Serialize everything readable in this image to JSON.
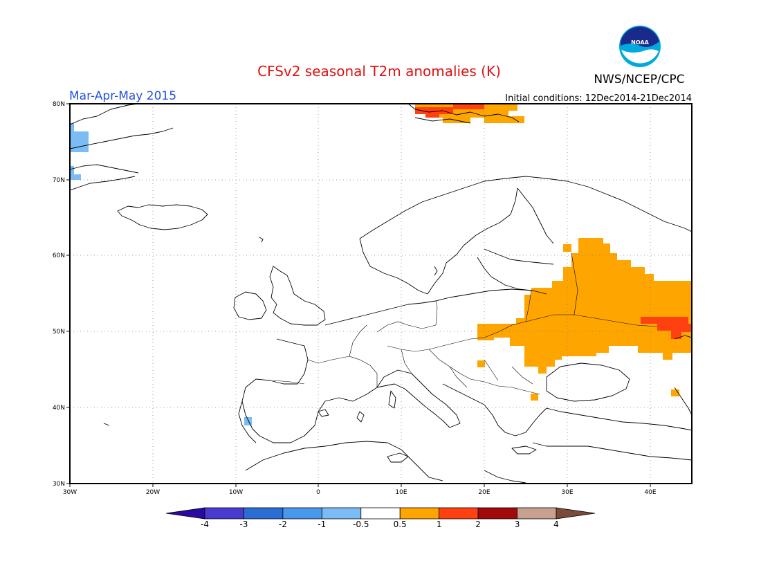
{
  "header": {
    "title": "CFSv2 seasonal T2m anomalies (K)",
    "agency": "NWS/NCEP/CPC",
    "logo_text": "NOAA",
    "period": "Mar-Apr-May 2015",
    "initial_conditions": "Initial conditions: 12Dec2014-21Dec2014"
  },
  "map": {
    "projection": "lat-lon",
    "lon_range": [
      -30,
      45
    ],
    "lat_range": [
      30,
      80
    ],
    "lon_ticks": [
      "30W",
      "20W",
      "10W",
      "0",
      "10E",
      "20E",
      "30E",
      "40E"
    ],
    "lat_ticks": [
      "30N",
      "40N",
      "50N",
      "60N",
      "70N",
      "80N"
    ],
    "grid": "dotted"
  },
  "colorbar": {
    "tick_labels": [
      "-4",
      "-3",
      "-2",
      "-1",
      "-0.5",
      "0.5",
      "1",
      "2",
      "3",
      "4"
    ],
    "colors": [
      "#2a0aa0",
      "#4a3ad0",
      "#2a6ed4",
      "#4a98ec",
      "#7cbcf4",
      "#ffffff",
      "#ffa500",
      "#ff4010",
      "#a00a0a",
      "#c8a090",
      "#7a4a3a"
    ]
  }
}
